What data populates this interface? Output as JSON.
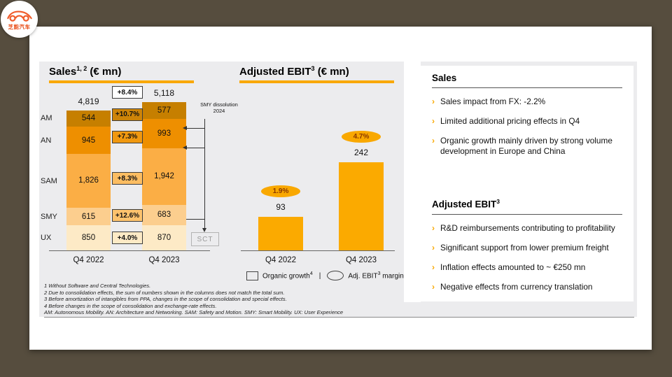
{
  "logo": {
    "brand_text": "芝能汽车"
  },
  "colors": {
    "accent_orange": "#f9a800",
    "background_brown": "#564d3e",
    "panel_gray": "#ececee",
    "ebit_bar": "#fbaa00"
  },
  "chart_data": [
    {
      "type": "bar",
      "subtype": "stacked",
      "title": "Sales1,2 (€ mn)",
      "categories": [
        "Q4 2022",
        "Q4 2023"
      ],
      "totals": [
        4819,
        5118
      ],
      "totals_display": [
        "4,819",
        "5,118"
      ],
      "total_growth": "+8.4%",
      "series": [
        {
          "name": "AM",
          "values": [
            544,
            577
          ],
          "values_display": [
            "544",
            "577"
          ],
          "growth": "+10.7%",
          "color": "#c67f00",
          "box_color": "#cd8408"
        },
        {
          "name": "AN",
          "values": [
            945,
            993
          ],
          "values_display": [
            "945",
            "993"
          ],
          "growth": "+7.3%",
          "color": "#ee8f00",
          "box_color": "#f09810"
        },
        {
          "name": "SAM",
          "values": [
            1826,
            1942
          ],
          "values_display": [
            "1,826",
            "1,942"
          ],
          "growth": "+8.3%",
          "color": "#fbae45",
          "box_color": "#fcbd62"
        },
        {
          "name": "SMY",
          "values": [
            615,
            683
          ],
          "values_display": [
            "615",
            "683"
          ],
          "growth": "+12.6%",
          "color": "#fcce8e",
          "box_color": "#fcc26d"
        },
        {
          "name": "UX",
          "values": [
            850,
            870
          ],
          "values_display": [
            "850",
            "870"
          ],
          "growth": "+4.0%",
          "color": "#fdeac6",
          "box_color": "#fdeac6"
        }
      ],
      "annotation": {
        "line1": "SMY dissolution",
        "line2": "2024",
        "target_box": "SCT"
      },
      "legend_position": "none",
      "grid": false
    },
    {
      "type": "bar",
      "title": "Adjusted EBIT3 (€ mn)",
      "categories": [
        "Q4 2022",
        "Q4 2023"
      ],
      "values": [
        93,
        242
      ],
      "values_display": [
        "93",
        "242"
      ],
      "margins": [
        "1.9%",
        "4.7%"
      ],
      "legend": [
        "Organic growth4",
        "Adj. EBIT3 margin"
      ],
      "grid": false
    }
  ],
  "sales_section": {
    "title_main": "Sales",
    "title_sup": "1, 2",
    "title_unit": " (€ mn)"
  },
  "ebit_section": {
    "title_main": "Adjusted EBIT",
    "title_sup": "3",
    "title_unit": " (€ mn)",
    "legend_organic": "Organic growth",
    "legend_organic_sup": "4",
    "legend_sep": "|",
    "legend_margin_pre": "Adj. EBIT",
    "legend_margin_sup": "3",
    "legend_margin_post": " margin"
  },
  "footnotes": [
    "1 Without Software and Central Technologies.",
    "2 Due to consolidation effects, the sum of numbers shown in the columns does not match the total sum.",
    "3 Before amortization of intangibles from PPA, changes in the scope of consolidation and special effects.",
    "4 Before changes in the scope of consolidation and exchange-rate effects.",
    "AM: Autonomous Mobility. AN: Architecture and Networking. SAM: Safety and Motion. SMY: Smart Mobility. UX: User Experience"
  ],
  "panel": {
    "sales": {
      "heading": "Sales",
      "bullets": [
        "Sales impact from FX: -2.2%",
        "Limited additional pricing effects in Q4",
        "Organic growth mainly driven by strong volume development in Europe and China"
      ]
    },
    "ebit": {
      "heading_main": "Adjusted EBIT",
      "heading_sup": "3",
      "bullets": [
        "R&D reimbursements contributing to profitability",
        "Significant support from lower premium freight",
        "Inflation effects amounted to ~ €250 mn",
        "Negative effects from currency translation"
      ]
    }
  }
}
